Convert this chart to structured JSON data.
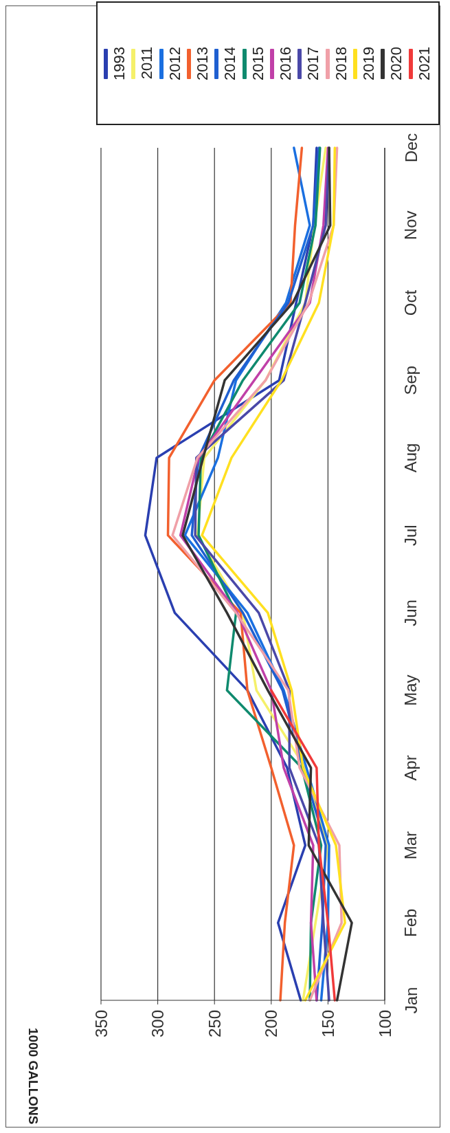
{
  "chart_data": {
    "type": "line",
    "orientation": "horizontal",
    "ylabel": "1000 GALLONS",
    "categories": [
      "Dec",
      "Nov",
      "Oct",
      "Sep",
      "Aug",
      "Jul",
      "Jun",
      "May",
      "Apr",
      "Mar",
      "Feb",
      "Jan"
    ],
    "series": [
      {
        "name": "1993",
        "color": "#2a3fb0",
        "values": [
          160,
          163,
          178,
          193,
          301,
          311,
          285,
          221,
          186,
          170,
          194,
          174
        ]
      },
      {
        "name": "2011",
        "color": "#f5f06a",
        "values": [
          152,
          162,
          170,
          205,
          259,
          265,
          225,
          213,
          170,
          150,
          161,
          172
        ]
      },
      {
        "name": "2012",
        "color": "#1a6fe0",
        "values": [
          180,
          166,
          187,
          231,
          247,
          276,
          221,
          189,
          169,
          149,
          150,
          156
        ]
      },
      {
        "name": "2013",
        "color": "#f2602e",
        "values": [
          173,
          179,
          183,
          250,
          290,
          291,
          227,
          221,
          200,
          180,
          188,
          192
        ]
      },
      {
        "name": "2014",
        "color": "#1f5fd0",
        "values": [
          158,
          163,
          185,
          233,
          264,
          270,
          225,
          190,
          172,
          152,
          155,
          160
        ]
      },
      {
        "name": "2015",
        "color": "#0f8a6e",
        "values": [
          157,
          161,
          175,
          225,
          262,
          264,
          231,
          239,
          173,
          156,
          165,
          166
        ]
      },
      {
        "name": "2016",
        "color": "#c040a8",
        "values": [
          150,
          154,
          166,
          215,
          264,
          280,
          230,
          200,
          189,
          163,
          165,
          160
        ]
      },
      {
        "name": "2017",
        "color": "#4a48a8",
        "values": [
          149,
          152,
          170,
          189,
          266,
          267,
          211,
          184,
          184,
          158,
          154,
          149
        ]
      },
      {
        "name": "2018",
        "color": "#f0a0a8",
        "values": [
          142,
          145,
          167,
          205,
          265,
          287,
          231,
          185,
          175,
          140,
          138,
          166
        ]
      },
      {
        "name": "2019",
        "color": "#ffe020",
        "values": [
          144,
          145,
          158,
          191,
          235,
          261,
          203,
          182,
          172,
          143,
          135,
          170
        ]
      },
      {
        "name": "2020",
        "color": "#333333",
        "values": [
          149,
          148,
          181,
          241,
          260,
          278,
          239,
          203,
          165,
          167,
          129,
          142
        ]
      },
      {
        "name": "2021",
        "color": "#f03a3a",
        "values": [
          null,
          null,
          null,
          null,
          null,
          null,
          null,
          200,
          160,
          158,
          150,
          144
        ]
      }
    ],
    "xlim": [
      350,
      100
    ],
    "xticks": [
      100,
      150,
      200,
      250,
      300,
      350
    ],
    "grid": "x",
    "legend": "top",
    "marker": "none",
    "line_style": "solid"
  }
}
